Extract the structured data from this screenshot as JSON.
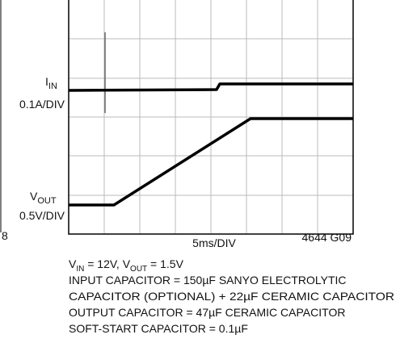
{
  "trace_labels": {
    "iin": {
      "main": "I",
      "sub": "IN",
      "scale": "0.1A/DIV"
    },
    "vout": {
      "main": "V",
      "sub": "OUT",
      "scale": "0.5V/DIV"
    }
  },
  "time_scale": "5ms/DIV",
  "figure_id": "4644 G09",
  "edge_fragment": "8",
  "notes": {
    "conditions": [
      "V",
      "IN",
      " = 12V, V",
      "OUT",
      " = 1.5V"
    ],
    "lines": [
      "INPUT CAPACITOR = 150µF SANYO ELECTROLYTIC",
      "CAPACITOR (OPTIONAL) + 22µF CERAMIC CAPACITOR",
      "OUTPUT CAPACITOR = 47µF CERAMIC CAPACITOR",
      "SOFT-START CAPACITOR = 0.1µF"
    ]
  }
}
